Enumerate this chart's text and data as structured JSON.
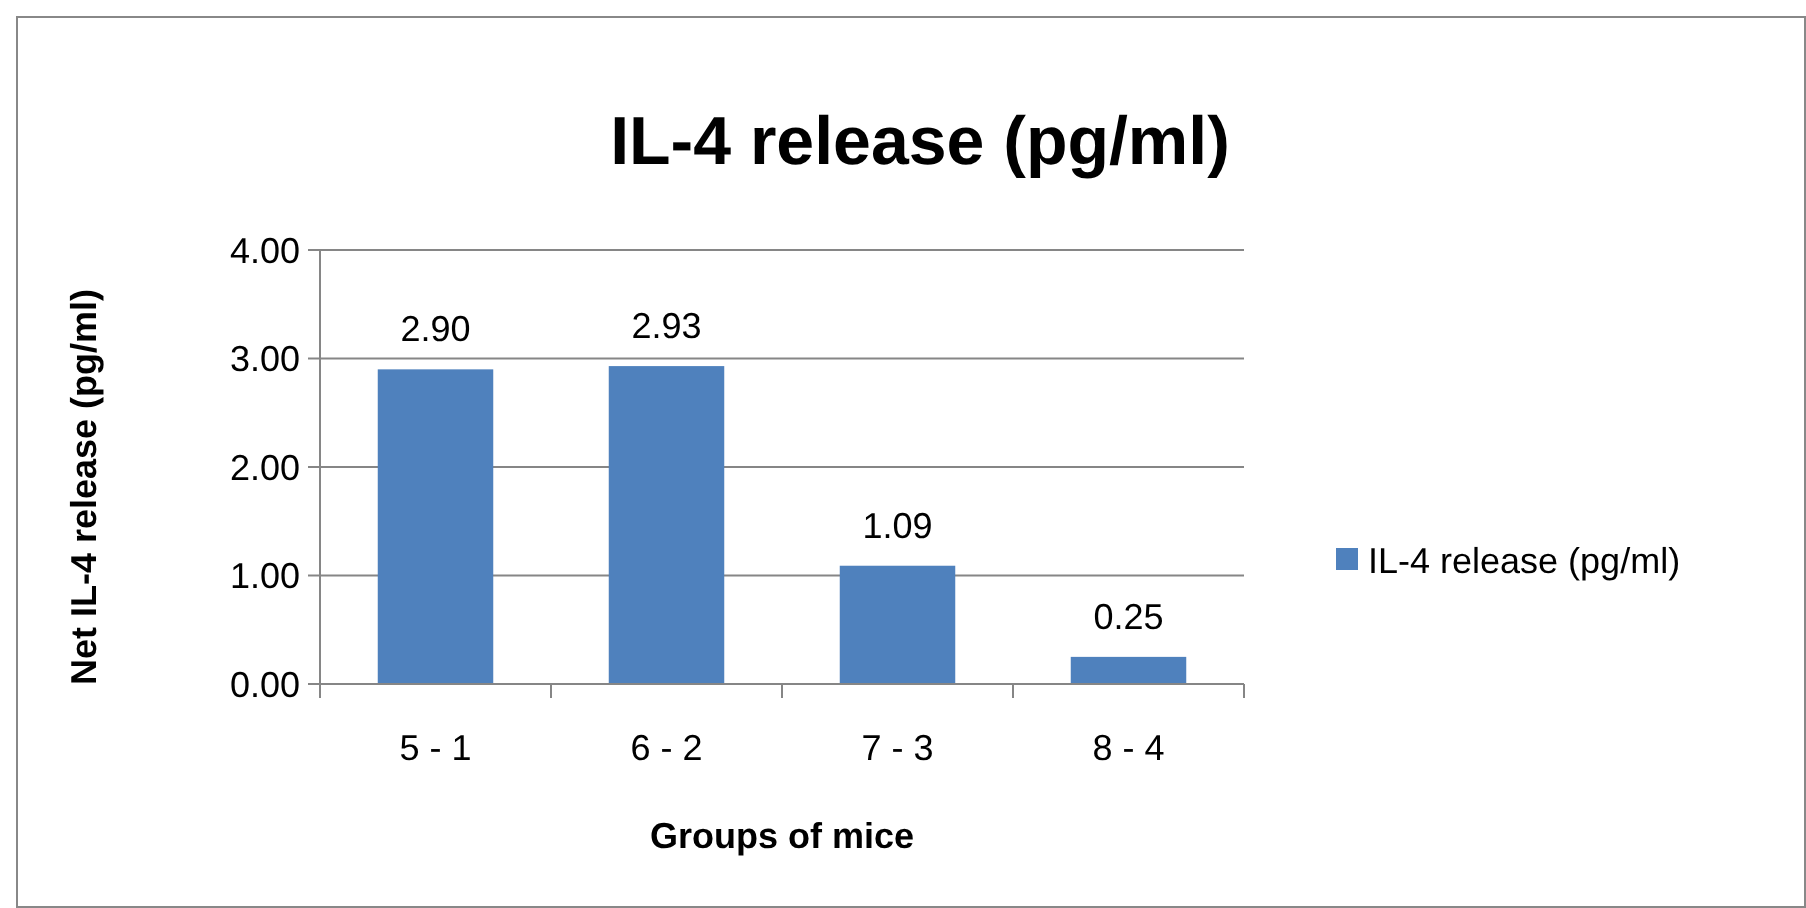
{
  "chart_data": {
    "type": "bar",
    "title": "IL-4 release (pg/ml)",
    "xlabel": "Groups of mice",
    "ylabel": "Net IL-4 release (pg/ml)",
    "categories": [
      "5 - 1",
      "6 - 2",
      "7 - 3",
      "8 - 4"
    ],
    "series": [
      {
        "name": "IL-4 release (pg/ml)",
        "color": "#4f81bd",
        "values": [
          2.9,
          2.93,
          1.09,
          0.25
        ]
      }
    ],
    "value_labels": [
      "2.90",
      "2.93",
      "1.09",
      "0.25"
    ],
    "ylim": [
      0,
      4
    ],
    "yticks": [
      {
        "value": 0,
        "label": "0.00"
      },
      {
        "value": 1,
        "label": "1.00"
      },
      {
        "value": 2,
        "label": "2.00"
      },
      {
        "value": 3,
        "label": "3.00"
      },
      {
        "value": 4,
        "label": "4.00"
      }
    ],
    "grid": "y",
    "legend": "right"
  }
}
